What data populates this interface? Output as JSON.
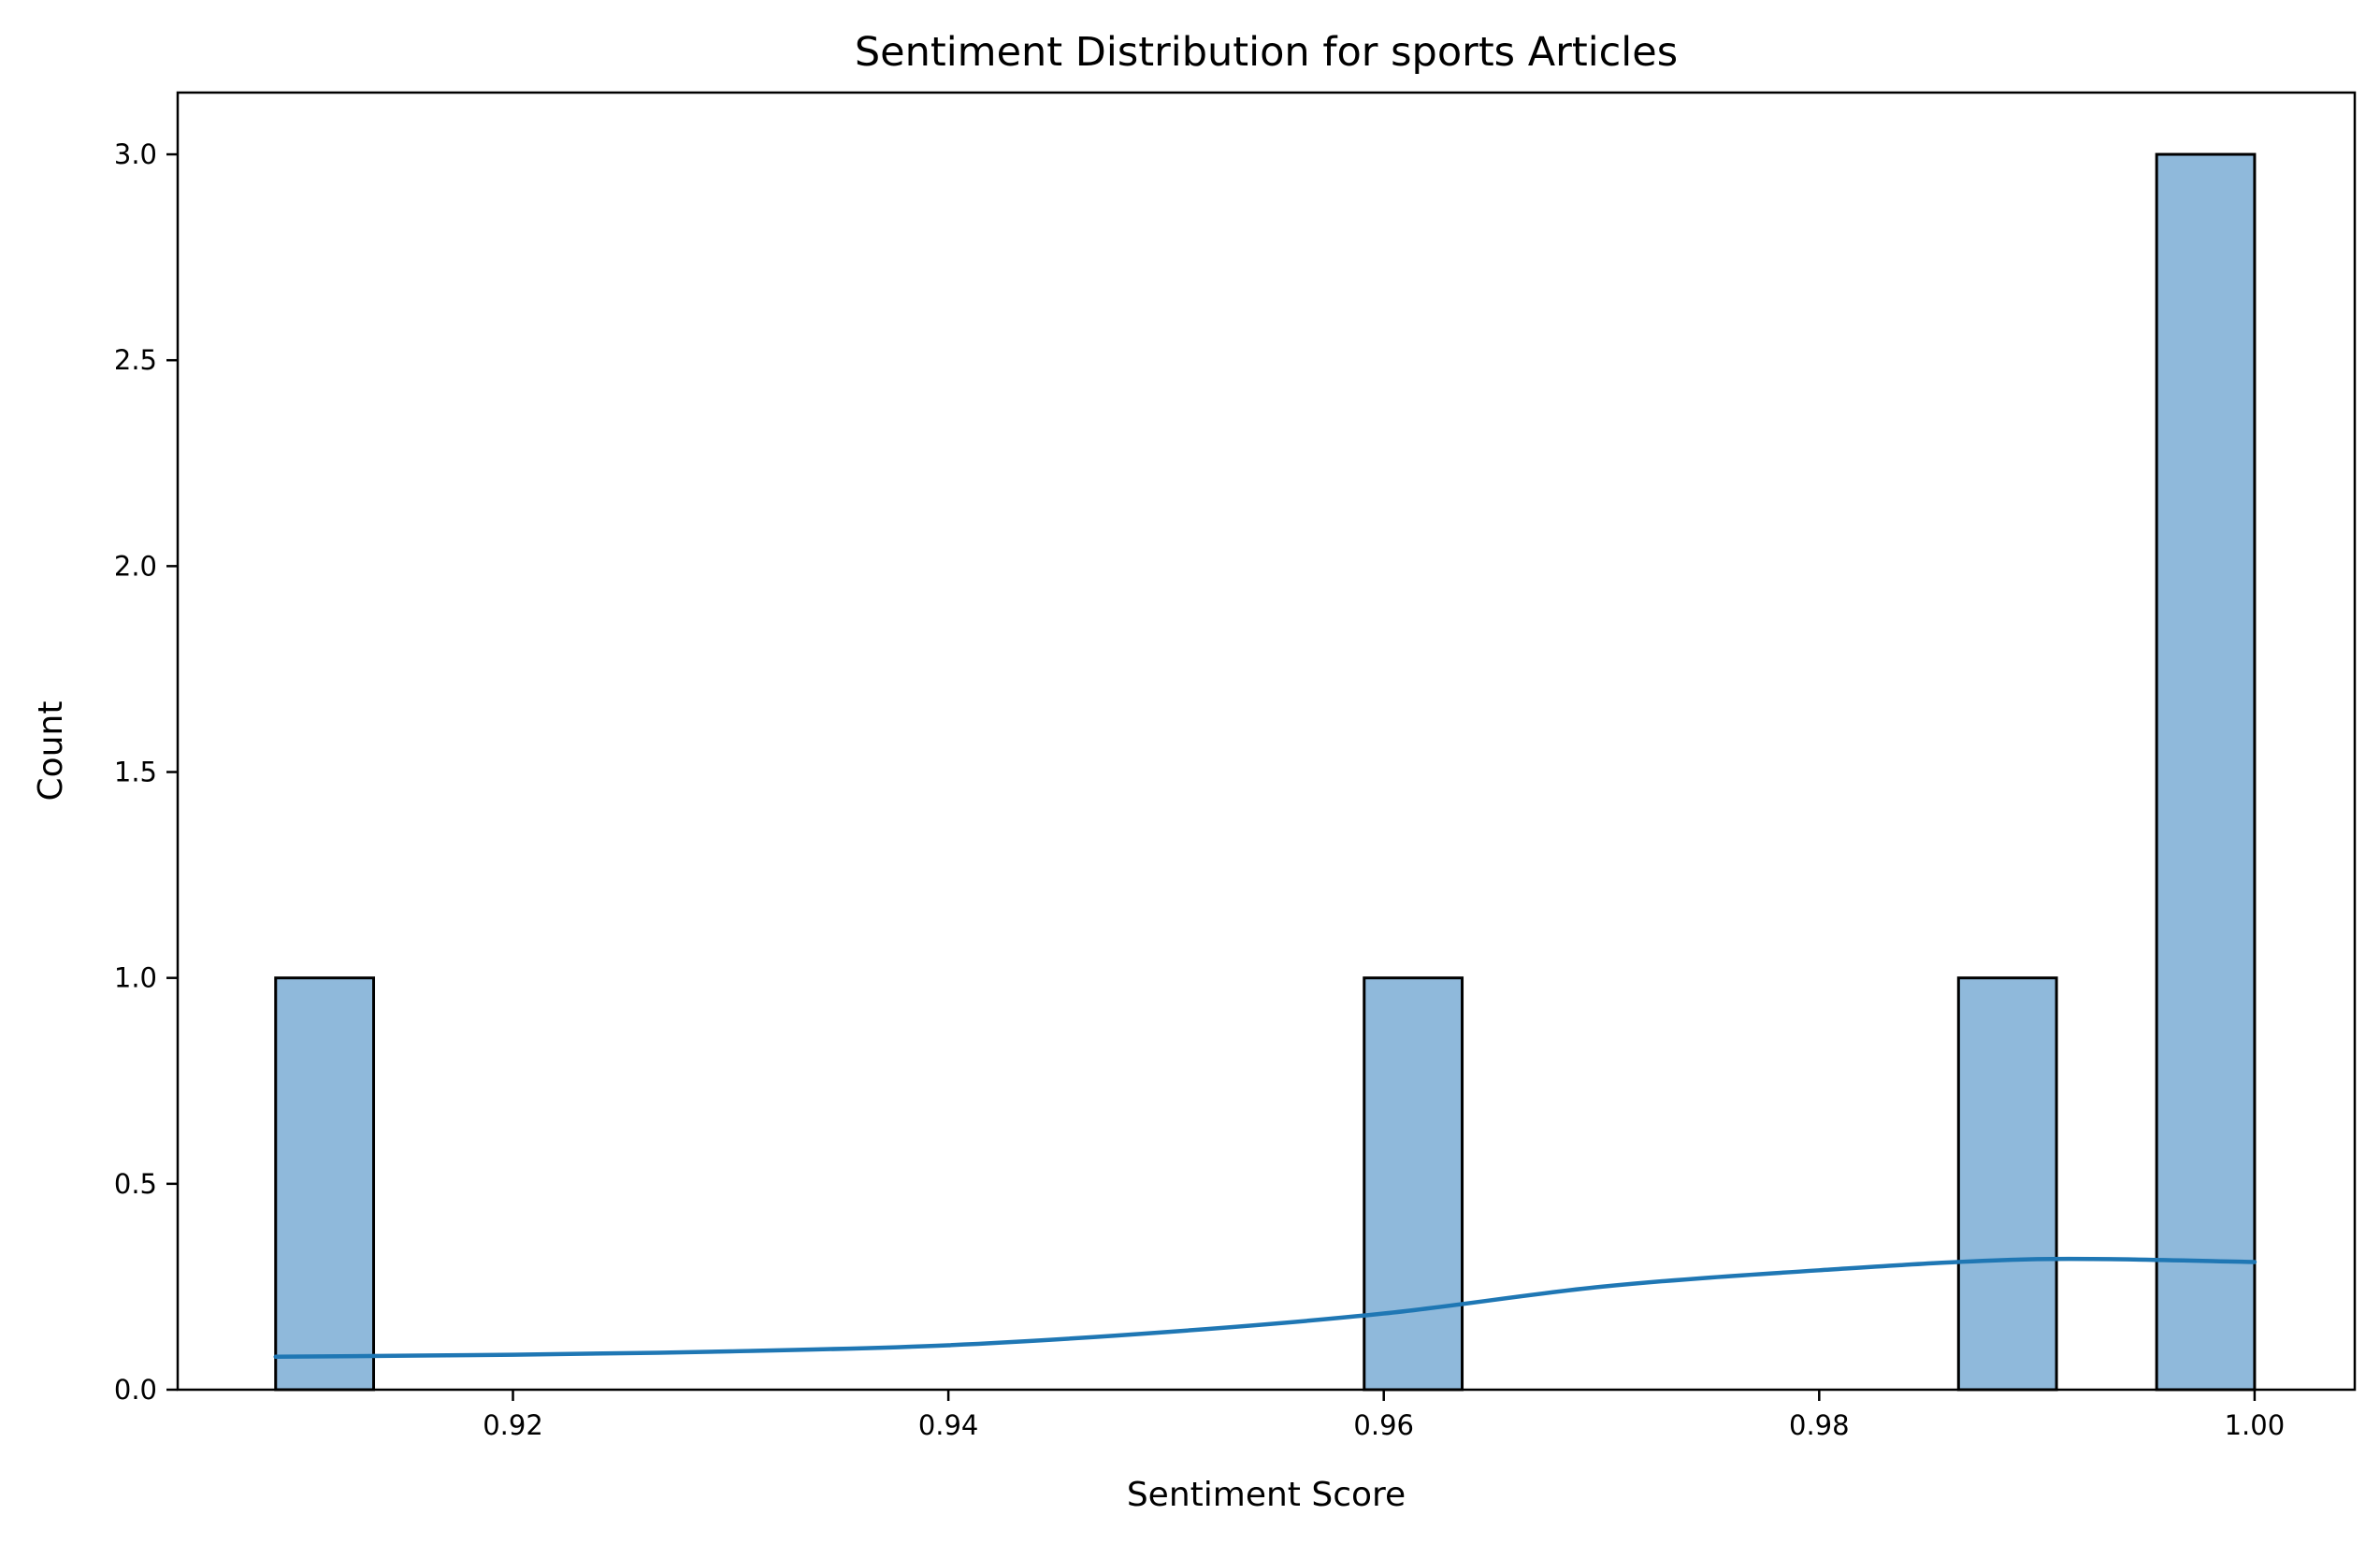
{
  "chart_data": {
    "type": "bar",
    "title": "Sentiment Distribution for sports Articles",
    "xlabel": "Sentiment Score",
    "ylabel": "Count",
    "xlim": [
      0.9046,
      1.0046
    ],
    "ylim": [
      0,
      3.15
    ],
    "xticks": [
      0.92,
      0.94,
      0.96,
      0.98,
      1.0
    ],
    "xtick_labels": [
      "0.92",
      "0.94",
      "0.96",
      "0.98",
      "1.00"
    ],
    "yticks": [
      0.0,
      0.5,
      1.0,
      1.5,
      2.0,
      2.5,
      3.0
    ],
    "ytick_labels": [
      "0.0",
      "0.5",
      "1.0",
      "1.5",
      "2.0",
      "2.5",
      "3.0"
    ],
    "grid": false,
    "bins": [
      {
        "x0": 0.9091,
        "x1": 0.9136,
        "count": 1
      },
      {
        "x0": 0.9591,
        "x1": 0.9636,
        "count": 1
      },
      {
        "x0": 0.9864,
        "x1": 0.9909,
        "count": 1
      },
      {
        "x0": 0.9955,
        "x1": 1.0,
        "count": 3
      }
    ],
    "kde": {
      "x": [
        0.9091,
        0.92,
        0.93,
        0.94,
        0.95,
        0.96,
        0.97,
        0.98,
        0.99,
        1.0
      ],
      "y": [
        0.08,
        0.085,
        0.093,
        0.108,
        0.14,
        0.185,
        0.25,
        0.29,
        0.317,
        0.31
      ]
    },
    "colors": {
      "bar_fill": "#8fb9db",
      "bar_edge": "#000000",
      "kde_line": "#1f77b4"
    }
  }
}
